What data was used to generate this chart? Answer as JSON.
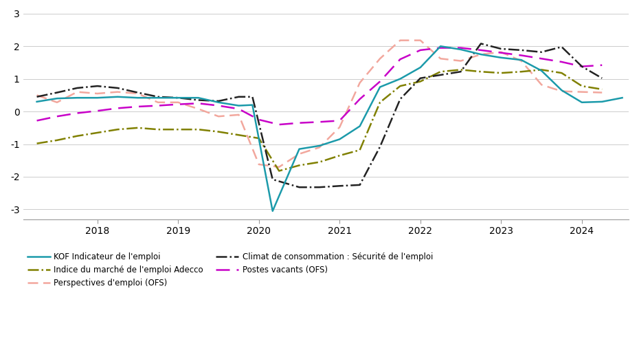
{
  "ylim": [
    -3.3,
    3.1
  ],
  "yticks": [
    -3,
    -2,
    -1,
    0,
    1,
    2,
    3
  ],
  "xlim": [
    2017.08,
    2024.58
  ],
  "xtick_positions": [
    2018.0,
    2019.0,
    2020.0,
    2021.0,
    2022.0,
    2023.0,
    2024.0
  ],
  "xtick_labels": [
    "2018",
    "2019",
    "2020",
    "2021",
    "2022",
    "2023",
    "2024"
  ],
  "series": {
    "kof": {
      "label": "KOF Indicateur de l'emploi",
      "color": "#1b9aaa",
      "linestyle": "solid",
      "linewidth": 1.8,
      "x": [
        2017.25,
        2017.5,
        2017.75,
        2018.0,
        2018.25,
        2018.5,
        2018.75,
        2019.0,
        2019.25,
        2019.5,
        2019.75,
        2019.92,
        2020.17,
        2020.5,
        2020.75,
        2021.0,
        2021.25,
        2021.5,
        2021.75,
        2022.0,
        2022.25,
        2022.5,
        2022.75,
        2023.0,
        2023.25,
        2023.5,
        2023.75,
        2024.0,
        2024.25,
        2024.5
      ],
      "y": [
        0.3,
        0.4,
        0.42,
        0.42,
        0.45,
        0.42,
        0.42,
        0.42,
        0.42,
        0.28,
        0.18,
        0.2,
        -3.05,
        -1.15,
        -1.05,
        -0.85,
        -0.45,
        0.75,
        1.0,
        1.35,
        2.0,
        1.9,
        1.75,
        1.65,
        1.58,
        1.25,
        0.65,
        0.28,
        0.3,
        0.42
      ]
    },
    "perspectives": {
      "label": "Perspectives d'emploi (OFS)",
      "color": "#f2a79d",
      "linestyle": "dashed",
      "linewidth": 1.8,
      "dashes": [
        6,
        3
      ],
      "x": [
        2017.25,
        2017.5,
        2017.75,
        2018.0,
        2018.25,
        2018.5,
        2018.75,
        2019.0,
        2019.25,
        2019.5,
        2019.75,
        2020.0,
        2020.25,
        2020.5,
        2020.75,
        2021.0,
        2021.25,
        2021.5,
        2021.75,
        2022.0,
        2022.25,
        2022.5,
        2022.75,
        2023.0,
        2023.25,
        2023.5,
        2023.75,
        2024.0,
        2024.25
      ],
      "y": [
        0.5,
        0.28,
        0.6,
        0.55,
        0.6,
        0.55,
        0.28,
        0.28,
        0.08,
        -0.15,
        -0.1,
        -1.62,
        -1.7,
        -1.3,
        -1.1,
        -0.48,
        0.88,
        1.62,
        2.18,
        2.18,
        1.62,
        1.55,
        1.75,
        1.82,
        1.55,
        0.82,
        0.62,
        0.6,
        0.58
      ]
    },
    "postes": {
      "label": "Postes vacants (OFS)",
      "color": "#c800c8",
      "linestyle": "dashed",
      "linewidth": 1.8,
      "dashes": [
        8,
        4
      ],
      "x": [
        2017.25,
        2017.5,
        2017.75,
        2018.0,
        2018.25,
        2018.5,
        2018.75,
        2019.0,
        2019.25,
        2019.5,
        2019.75,
        2020.0,
        2020.25,
        2020.5,
        2020.75,
        2021.0,
        2021.25,
        2021.5,
        2021.75,
        2022.0,
        2022.25,
        2022.5,
        2022.75,
        2023.0,
        2023.25,
        2023.5,
        2023.75,
        2024.0,
        2024.25
      ],
      "y": [
        -0.28,
        -0.15,
        -0.05,
        0.02,
        0.1,
        0.15,
        0.18,
        0.22,
        0.25,
        0.18,
        0.08,
        -0.25,
        -0.4,
        -0.35,
        -0.32,
        -0.28,
        0.38,
        0.92,
        1.6,
        1.88,
        1.95,
        1.95,
        1.88,
        1.8,
        1.72,
        1.62,
        1.52,
        1.38,
        1.42
      ]
    },
    "adecco": {
      "label": "Indice du marché de l'emploi Adecco",
      "color": "#808000",
      "linestyle": "dashdot",
      "linewidth": 1.8,
      "x": [
        2017.25,
        2017.5,
        2017.75,
        2018.0,
        2018.25,
        2018.5,
        2018.75,
        2019.0,
        2019.25,
        2019.5,
        2019.75,
        2020.0,
        2020.25,
        2020.5,
        2020.75,
        2021.0,
        2021.25,
        2021.5,
        2021.75,
        2022.0,
        2022.25,
        2022.5,
        2022.75,
        2023.0,
        2023.25,
        2023.5,
        2023.75,
        2024.0,
        2024.25
      ],
      "y": [
        -0.98,
        -0.88,
        -0.75,
        -0.65,
        -0.55,
        -0.5,
        -0.55,
        -0.55,
        -0.55,
        -0.62,
        -0.72,
        -0.82,
        -1.82,
        -1.65,
        -1.55,
        -1.35,
        -1.18,
        0.28,
        0.78,
        0.92,
        1.22,
        1.28,
        1.22,
        1.18,
        1.22,
        1.28,
        1.18,
        0.78,
        0.68
      ]
    },
    "climat": {
      "label": "Climat de consommation : Sécurité de l'emploi",
      "color": "#222222",
      "linestyle": "dashdot",
      "linewidth": 1.8,
      "x": [
        2017.25,
        2017.5,
        2017.75,
        2018.0,
        2018.25,
        2018.5,
        2018.75,
        2019.0,
        2019.25,
        2019.5,
        2019.75,
        2019.92,
        2020.17,
        2020.5,
        2020.75,
        2021.0,
        2021.25,
        2021.5,
        2021.75,
        2022.0,
        2022.25,
        2022.5,
        2022.75,
        2023.0,
        2023.25,
        2023.5,
        2023.75,
        2024.0,
        2024.25
      ],
      "y": [
        0.45,
        0.58,
        0.72,
        0.78,
        0.72,
        0.58,
        0.45,
        0.42,
        0.35,
        0.32,
        0.45,
        0.45,
        -2.08,
        -2.32,
        -2.32,
        -2.28,
        -2.25,
        -1.08,
        0.38,
        1.02,
        1.12,
        1.22,
        2.08,
        1.92,
        1.88,
        1.82,
        1.98,
        1.38,
        1.02
      ]
    }
  },
  "legend": [
    {
      "label": "KOF Indicateur de l'emploi",
      "color": "#1b9aaa",
      "ls": "solid",
      "lw": 1.8,
      "dashes": null
    },
    {
      "label": "Indice du marché de l'emploi Adecco",
      "color": "#808000",
      "ls": "dashdot",
      "lw": 1.8,
      "dashes": null
    },
    {
      "label": "Perspectives d'emploi (OFS)",
      "color": "#f2a79d",
      "ls": "dashed",
      "lw": 1.8,
      "dashes": [
        6,
        3
      ]
    },
    {
      "label": "Climat de consommation : Sécurité de l'emploi",
      "color": "#222222",
      "ls": "dashdot",
      "lw": 1.8,
      "dashes": null
    },
    {
      "label": "Postes vacants (OFS)",
      "color": "#c800c8",
      "ls": "dashed",
      "lw": 1.8,
      "dashes": [
        8,
        4
      ]
    }
  ]
}
